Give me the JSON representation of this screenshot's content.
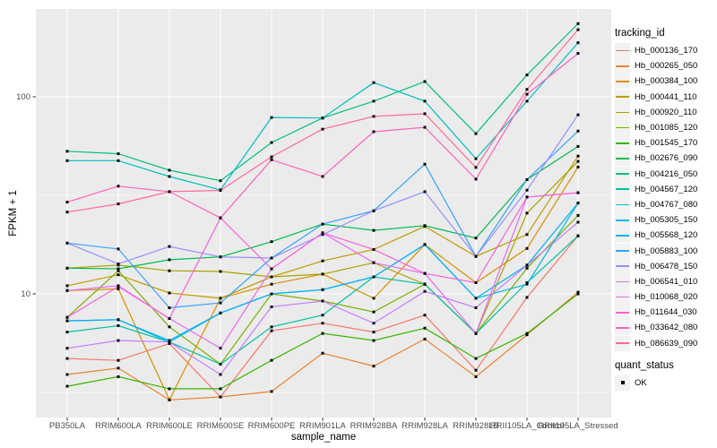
{
  "figure": {
    "y_axis_title": "FPKM + 1",
    "x_axis_title": "sample_name",
    "legend": {
      "tracking_title": "tracking_id",
      "quant_title": "quant_status",
      "quant_label": "OK"
    },
    "colors": {
      "panel_background": "#EBEBEB",
      "gridline": "#FFFFFF",
      "tick_text": "#4D4D4D",
      "point": "#000000",
      "legend_key_background": "#F2F2F2"
    }
  },
  "chart_data": {
    "type": "line",
    "title": "",
    "xlabel": "sample_name",
    "ylabel": "FPKM + 1",
    "y_scale": "log10",
    "ylim": [
      2.5,
      270
    ],
    "y_major_ticks": [
      10,
      100
    ],
    "y_minor_ticks": [
      3.162,
      31.62
    ],
    "grid": true,
    "legend_position": "right",
    "point_shape": "square",
    "quant_status_legend": {
      "label": "OK",
      "marker": "black-square"
    },
    "categories": [
      "PB350LA",
      "RRIM600LA",
      "RRIM600LE",
      "RRIM600SE",
      "RRIM600PE",
      "RRIM901LA",
      "RRIM928BA",
      "RRIM928LA",
      "RRIM928LB",
      "RRII105LA_Control",
      "RRII105LA_Stressed"
    ],
    "series": [
      {
        "name": "Hb_000136_170",
        "color": "#F8766D",
        "values": [
          4.7,
          4.6,
          5.6,
          3.0,
          6.5,
          7.1,
          6.4,
          7.8,
          4.1,
          9.6,
          19.7
        ]
      },
      {
        "name": "Hb_000265_050",
        "color": "#EA8331",
        "values": [
          3.9,
          4.2,
          2.9,
          3.0,
          3.2,
          5.0,
          4.3,
          5.9,
          3.8,
          6.2,
          10.2
        ]
      },
      {
        "name": "Hb_000384_100",
        "color": "#D89000",
        "values": [
          10.4,
          10.6,
          2.9,
          9.5,
          11.2,
          12.6,
          9.5,
          17.8,
          11.4,
          17.0,
          44.0
        ]
      },
      {
        "name": "Hb_000441_110",
        "color": "#C09B00",
        "values": [
          11.0,
          12.5,
          10.1,
          9.5,
          12.2,
          14.7,
          16.8,
          22.0,
          15.5,
          20.0,
          50.0
        ]
      },
      {
        "name": "Hb_000920_110",
        "color": "#A3A500",
        "values": [
          13.5,
          14.0,
          13.1,
          13.0,
          12.2,
          12.6,
          14.4,
          11.2,
          6.3,
          25.7,
          47.0
        ]
      },
      {
        "name": "Hb_001085_120",
        "color": "#7CAE00",
        "values": [
          7.6,
          13.1,
          6.8,
          4.4,
          10.0,
          9.2,
          8.1,
          11.2,
          6.3,
          13.5,
          25.0
        ]
      },
      {
        "name": "Hb_001545_170",
        "color": "#39B600",
        "values": [
          3.4,
          3.8,
          3.3,
          3.3,
          4.6,
          6.3,
          5.8,
          6.7,
          4.7,
          6.3,
          10.0
        ]
      },
      {
        "name": "Hb_002676_090",
        "color": "#00BB4E",
        "values": [
          13.5,
          13.4,
          14.9,
          15.4,
          18.4,
          22.6,
          21.0,
          22.2,
          19.2,
          38.0,
          56.0
        ]
      },
      {
        "name": "Hb_004216_050",
        "color": "#00BF7D",
        "values": [
          52.9,
          51.4,
          42.4,
          37.5,
          58.6,
          78.0,
          95.0,
          119.5,
          65.0,
          129.0,
          235.0
        ]
      },
      {
        "name": "Hb_004567_120",
        "color": "#00C1A3",
        "values": [
          6.4,
          6.9,
          5.7,
          4.4,
          6.8,
          7.8,
          12.2,
          11.2,
          6.3,
          11.4,
          19.7
        ]
      },
      {
        "name": "Hb_004767_080",
        "color": "#00BFC4",
        "values": [
          47.4,
          47.4,
          39.4,
          33.7,
          78.5,
          78.0,
          118.0,
          95.0,
          48.5,
          95.0,
          188.0
        ]
      },
      {
        "name": "Hb_005305_150",
        "color": "#00BAE0",
        "values": [
          7.3,
          7.4,
          5.7,
          8.0,
          10.0,
          10.5,
          12.2,
          17.8,
          9.5,
          11.2,
          28.9
        ]
      },
      {
        "name": "Hb_005568_120",
        "color": "#00B0F6",
        "values": [
          7.3,
          7.4,
          5.8,
          8.0,
          10.0,
          10.5,
          12.2,
          17.8,
          9.5,
          14.0,
          28.9
        ]
      },
      {
        "name": "Hb_005883_100",
        "color": "#35A2FF",
        "values": [
          18.1,
          16.9,
          8.5,
          9.0,
          15.2,
          22.6,
          26.4,
          45.5,
          15.5,
          38.0,
          67.0
        ]
      },
      {
        "name": "Hb_006478_150",
        "color": "#9590FF",
        "values": [
          18.1,
          14.2,
          17.4,
          15.4,
          15.2,
          20.0,
          26.4,
          33.0,
          15.5,
          33.6,
          81.0
        ]
      },
      {
        "name": "Hb_006541_010",
        "color": "#C77CFF",
        "values": [
          5.3,
          5.8,
          5.7,
          3.9,
          8.6,
          9.2,
          7.1,
          10.3,
          8.5,
          14.0,
          23.1
        ]
      },
      {
        "name": "Hb_010068_020",
        "color": "#E76BF3",
        "values": [
          10.4,
          11.0,
          7.5,
          5.3,
          13.4,
          20.4,
          14.4,
          12.7,
          6.3,
          31.0,
          32.6
        ]
      },
      {
        "name": "Hb_011644_030",
        "color": "#FA62DB",
        "values": [
          7.6,
          10.9,
          7.5,
          24.3,
          13.4,
          20.4,
          16.8,
          12.7,
          11.4,
          31.0,
          32.6
        ]
      },
      {
        "name": "Hb_033642_080",
        "color": "#FF62BC",
        "values": [
          29.2,
          35.2,
          33.0,
          24.3,
          47.9,
          39.4,
          66.5,
          70.0,
          38.2,
          103.0,
          166.0
        ]
      },
      {
        "name": "Hb_086639_090",
        "color": "#FF6A98",
        "values": [
          26.0,
          28.6,
          33.0,
          33.5,
          49.6,
          68.5,
          79.5,
          82.0,
          43.8,
          109.0,
          219.0
        ]
      }
    ]
  }
}
